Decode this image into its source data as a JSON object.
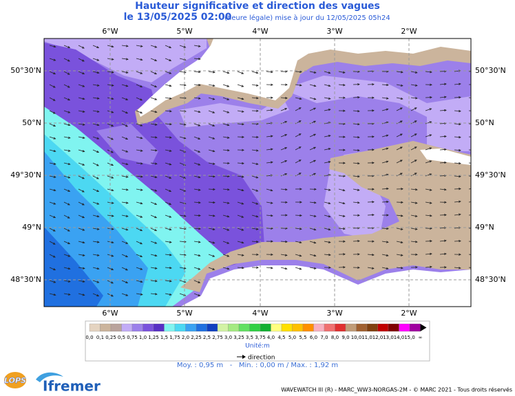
{
  "header": {
    "title": "Hauteur significative et direction des vagues",
    "date": "le 13/05/2025 02:00",
    "update": "(heure légale) mise à jour du 12/05/2025 05h24"
  },
  "map": {
    "lon_labels": [
      "6°W",
      "5°W",
      "4°W",
      "3°W",
      "2°W"
    ],
    "lat_labels": [
      "50°30'N",
      "50°N",
      "49°30'N",
      "49°N",
      "48°30'N"
    ]
  },
  "scale": {
    "labels": [
      "0,0",
      "0,1",
      "0,25",
      "0,5",
      "0,75",
      "1,0",
      "1,25",
      "1,5",
      "1,75",
      "2,0",
      "2,25",
      "2,5",
      "2,75",
      "3,0",
      "3,25",
      "3,5",
      "3,75",
      "4,0",
      "4,5",
      "5,0",
      "5,5",
      "6,0",
      "7,0",
      "8,0",
      "9,0",
      "10,0",
      "11,0",
      "12,0",
      "13,0",
      "14,0",
      "15,0",
      "∞"
    ],
    "colors": [
      "#e4d3c0",
      "#cbb49c",
      "#b9a39c",
      "#c2acf6",
      "#9c80ea",
      "#7a52dc",
      "#5830c4",
      "#80f4f0",
      "#4cd8f2",
      "#3aa2f2",
      "#2070e0",
      "#1040c0",
      "#d2f2a4",
      "#a4ea82",
      "#62e062",
      "#30d044",
      "#12b032",
      "#ffff80",
      "#ffe000",
      "#ffc000",
      "#ff9000",
      "#f8b0c0",
      "#f07070",
      "#e03030",
      "#c09c78",
      "#a06030",
      "#804010",
      "#c00000",
      "#800000",
      "#ff00ff",
      "#a000a0"
    ],
    "unit": "Unité:m"
  },
  "direction_label": "direction",
  "stats": "Moy. : 0,95 m   -   Min. : 0,00 m / Max. : 1,92 m",
  "logos": {
    "lops": "LOPS",
    "ifremer": "Ifremer"
  },
  "footer": "WAVEWATCH III (R) - MARC_WW3-NORGAS-2M - © MARC 2021 - Tous droits réservés"
}
